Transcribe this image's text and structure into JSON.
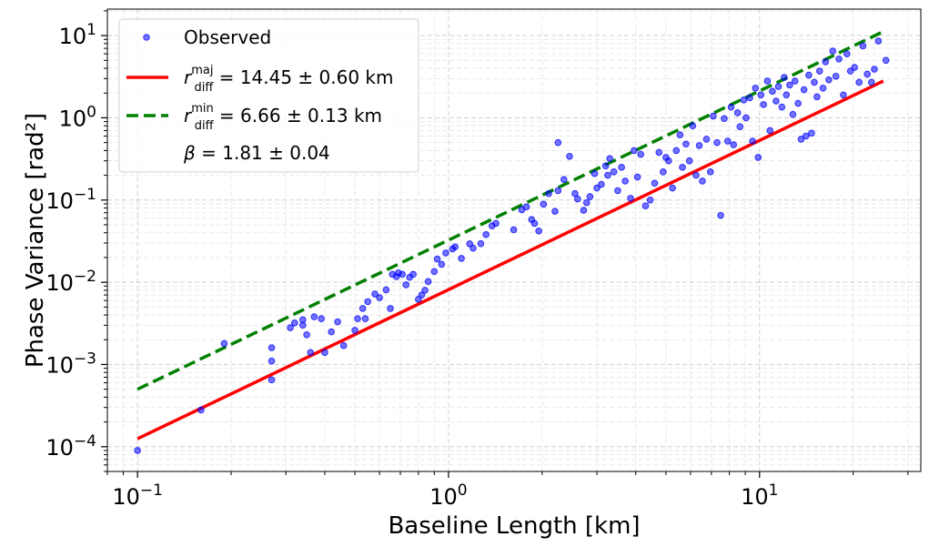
{
  "chart_data": {
    "type": "scatter",
    "xlabel": "Baseline Length [km]",
    "ylabel": "Phase Variance [rad²]",
    "xscale": "log",
    "yscale": "log",
    "xlim": [
      0.08,
      33
    ],
    "ylim": [
      5e-05,
      21
    ],
    "grid": true,
    "legend_position": "top-left",
    "x_ticks": [
      {
        "value": 0.1,
        "base": "10",
        "exp": "−1"
      },
      {
        "value": 1,
        "base": "10",
        "exp": "0"
      },
      {
        "value": 10,
        "base": "10",
        "exp": "1"
      }
    ],
    "y_ticks": [
      {
        "value": 0.0001,
        "base": "10",
        "exp": "−4"
      },
      {
        "value": 0.001,
        "base": "10",
        "exp": "−3"
      },
      {
        "value": 0.01,
        "base": "10",
        "exp": "−2"
      },
      {
        "value": 0.1,
        "base": "10",
        "exp": "−1"
      },
      {
        "value": 1,
        "base": "10",
        "exp": "0"
      },
      {
        "value": 10,
        "base": "10",
        "exp": "1"
      }
    ],
    "legend": [
      {
        "kind": "marker",
        "color": "#0000ff",
        "label": "Observed"
      },
      {
        "kind": "line",
        "color": "#ff0000",
        "dash": false,
        "sym": "r",
        "sup": "maj",
        "sub": "diff",
        "rest": " = 14.45 ± 0.60 km"
      },
      {
        "kind": "line",
        "color": "#008000",
        "dash": true,
        "sym": "r",
        "sup": "min",
        "sub": "diff",
        "rest": " = 6.66 ± 0.13 km"
      },
      {
        "kind": "text",
        "sym": "β",
        "rest": " = 1.81 ± 0.04"
      }
    ],
    "series": [
      {
        "kind": "scatter",
        "name": "Observed",
        "color": "#0000ff",
        "points": [
          [
            0.1,
            9e-05
          ],
          [
            0.16,
            0.00028
          ],
          [
            0.19,
            0.0018
          ],
          [
            0.27,
            0.00065
          ],
          [
            0.27,
            0.0011
          ],
          [
            0.27,
            0.0016
          ],
          [
            0.31,
            0.0028
          ],
          [
            0.32,
            0.0032
          ],
          [
            0.34,
            0.003
          ],
          [
            0.34,
            0.0035
          ],
          [
            0.35,
            0.0023
          ],
          [
            0.36,
            0.0014
          ],
          [
            0.37,
            0.0038
          ],
          [
            0.39,
            0.0036
          ],
          [
            0.4,
            0.0014
          ],
          [
            0.42,
            0.0025
          ],
          [
            0.44,
            0.0033
          ],
          [
            0.46,
            0.0017
          ],
          [
            0.5,
            0.0026
          ],
          [
            0.51,
            0.0036
          ],
          [
            0.53,
            0.0048
          ],
          [
            0.54,
            0.0036
          ],
          [
            0.55,
            0.0058
          ],
          [
            0.58,
            0.0072
          ],
          [
            0.6,
            0.0065
          ],
          [
            0.63,
            0.0081
          ],
          [
            0.65,
            0.0048
          ],
          [
            0.66,
            0.0125
          ],
          [
            0.68,
            0.0117
          ],
          [
            0.69,
            0.013
          ],
          [
            0.71,
            0.0125
          ],
          [
            0.73,
            0.0093
          ],
          [
            0.75,
            0.0115
          ],
          [
            0.77,
            0.0125
          ],
          [
            0.8,
            0.0062
          ],
          [
            0.82,
            0.007
          ],
          [
            0.84,
            0.008
          ],
          [
            0.86,
            0.0102
          ],
          [
            0.9,
            0.0135
          ],
          [
            0.92,
            0.0192
          ],
          [
            0.95,
            0.0165
          ],
          [
            0.98,
            0.0227
          ],
          [
            1.03,
            0.0255
          ],
          [
            1.05,
            0.027
          ],
          [
            1.1,
            0.0195
          ],
          [
            1.17,
            0.0293
          ],
          [
            1.2,
            0.026
          ],
          [
            1.27,
            0.0295
          ],
          [
            1.32,
            0.038
          ],
          [
            1.38,
            0.0485
          ],
          [
            1.42,
            0.052
          ],
          [
            1.62,
            0.0435
          ],
          [
            1.72,
            0.0762
          ],
          [
            1.78,
            0.0825
          ],
          [
            1.85,
            0.058
          ],
          [
            1.89,
            0.052
          ],
          [
            1.95,
            0.042
          ],
          [
            2.02,
            0.089
          ],
          [
            2.1,
            0.12
          ],
          [
            2.2,
            0.073
          ],
          [
            2.25,
            0.13
          ],
          [
            2.25,
            0.5
          ],
          [
            2.35,
            0.178
          ],
          [
            2.45,
            0.34
          ],
          [
            2.55,
            0.12
          ],
          [
            2.6,
            0.103
          ],
          [
            2.72,
            0.075
          ],
          [
            2.78,
            0.093
          ],
          [
            2.85,
            0.11
          ],
          [
            2.95,
            0.21
          ],
          [
            3.0,
            0.14
          ],
          [
            3.1,
            0.155
          ],
          [
            3.2,
            0.26
          ],
          [
            3.25,
            0.2
          ],
          [
            3.3,
            0.32
          ],
          [
            3.4,
            0.22
          ],
          [
            3.5,
            0.13
          ],
          [
            3.6,
            0.25
          ],
          [
            3.7,
            0.17
          ],
          [
            3.85,
            0.105
          ],
          [
            3.95,
            0.4
          ],
          [
            4.05,
            0.19
          ],
          [
            4.15,
            0.36
          ],
          [
            4.3,
            0.085
          ],
          [
            4.45,
            0.1
          ],
          [
            4.6,
            0.16
          ],
          [
            4.75,
            0.38
          ],
          [
            4.9,
            0.22
          ],
          [
            5.0,
            0.33
          ],
          [
            5.1,
            0.3
          ],
          [
            5.25,
            0.14
          ],
          [
            5.4,
            0.4
          ],
          [
            5.55,
            0.62
          ],
          [
            5.65,
            0.25
          ],
          [
            5.8,
            0.48
          ],
          [
            5.95,
            0.3
          ],
          [
            6.1,
            0.8
          ],
          [
            6.25,
            0.2
          ],
          [
            6.4,
            0.46
          ],
          [
            6.55,
            0.17
          ],
          [
            6.75,
            0.55
          ],
          [
            6.95,
            0.22
          ],
          [
            7.1,
            1.05
          ],
          [
            7.3,
            0.5
          ],
          [
            7.5,
            0.065
          ],
          [
            7.7,
            0.98
          ],
          [
            7.9,
            0.52
          ],
          [
            8.1,
            1.35
          ],
          [
            8.25,
            0.47
          ],
          [
            8.5,
            1.15
          ],
          [
            8.65,
            0.78
          ],
          [
            8.9,
            1.65
          ],
          [
            9.05,
            1.0
          ],
          [
            9.3,
            1.75
          ],
          [
            9.5,
            0.52
          ],
          [
            9.7,
            2.3
          ],
          [
            9.9,
            0.33
          ],
          [
            10.1,
            1.9
          ],
          [
            10.3,
            1.45
          ],
          [
            10.6,
            2.8
          ],
          [
            10.8,
            0.7
          ],
          [
            11.0,
            2.1
          ],
          [
            11.3,
            1.6
          ],
          [
            11.5,
            2.4
          ],
          [
            11.8,
            1.35
          ],
          [
            12.0,
            3.1
          ],
          [
            12.2,
            1.9
          ],
          [
            12.5,
            2.5
          ],
          [
            12.8,
            1.1
          ],
          [
            13.0,
            2.8
          ],
          [
            13.3,
            1.5
          ],
          [
            13.6,
            0.55
          ],
          [
            13.9,
            2.2
          ],
          [
            14.1,
            0.6
          ],
          [
            14.4,
            3.3
          ],
          [
            14.7,
            0.65
          ],
          [
            15.0,
            2.7
          ],
          [
            15.3,
            1.8
          ],
          [
            15.6,
            3.7
          ],
          [
            16.0,
            2.3
          ],
          [
            16.3,
            4.8
          ],
          [
            16.7,
            2.9
          ],
          [
            17.2,
            6.5
          ],
          [
            17.6,
            3.2
          ],
          [
            18.0,
            5.2
          ],
          [
            18.6,
            1.9
          ],
          [
            19.1,
            6.0
          ],
          [
            19.6,
            3.7
          ],
          [
            20.2,
            4.1
          ],
          [
            20.9,
            2.7
          ],
          [
            21.5,
            7.5
          ],
          [
            22.2,
            3.4
          ],
          [
            22.9,
            2.7
          ],
          [
            23.4,
            3.9
          ],
          [
            24.1,
            8.6
          ],
          [
            25.5,
            5.0
          ]
        ]
      },
      {
        "kind": "line",
        "name": "maj",
        "color": "#ff0000",
        "dash": false,
        "points": [
          [
            0.1,
            0.000125
          ],
          [
            25,
            2.8
          ]
        ]
      },
      {
        "kind": "line",
        "name": "min",
        "color": "#008000",
        "dash": true,
        "points": [
          [
            0.1,
            0.0005
          ],
          [
            25,
            11.2
          ]
        ]
      }
    ]
  }
}
